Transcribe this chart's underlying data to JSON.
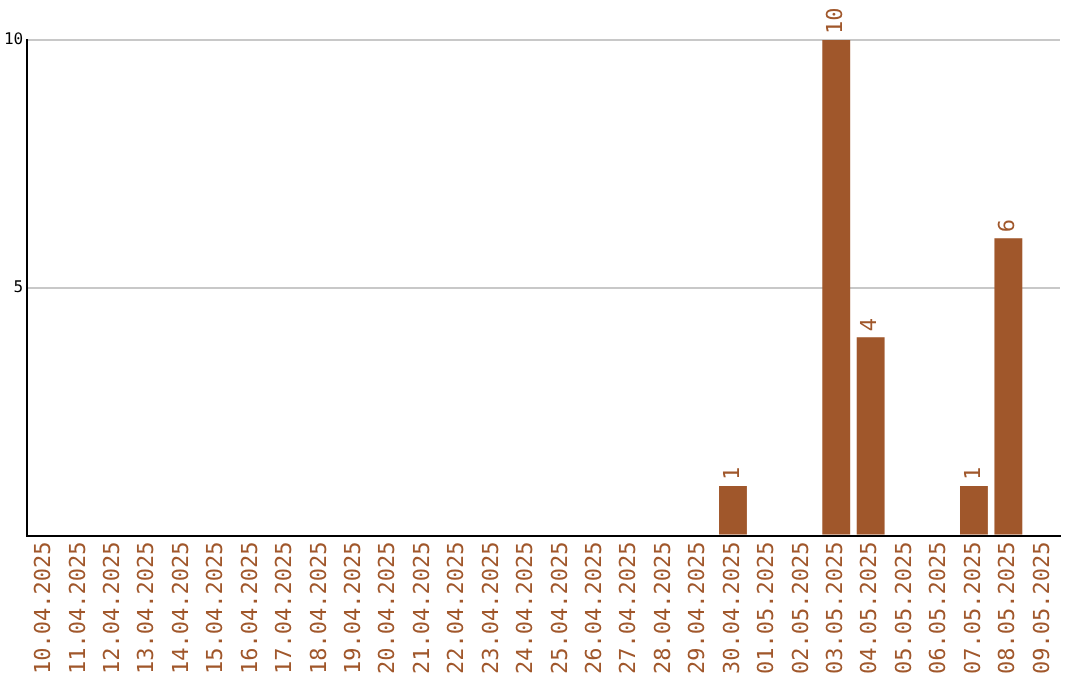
{
  "chart_data": {
    "type": "bar",
    "categories": [
      "10.04.2025",
      "11.04.2025",
      "12.04.2025",
      "13.04.2025",
      "14.04.2025",
      "15.04.2025",
      "16.04.2025",
      "17.04.2025",
      "18.04.2025",
      "19.04.2025",
      "20.04.2025",
      "21.04.2025",
      "22.04.2025",
      "23.04.2025",
      "24.04.2025",
      "25.04.2025",
      "26.04.2025",
      "27.04.2025",
      "28.04.2025",
      "29.04.2025",
      "30.04.2025",
      "01.05.2025",
      "02.05.2025",
      "03.05.2025",
      "04.05.2025",
      "05.05.2025",
      "06.05.2025",
      "07.05.2025",
      "08.05.2025",
      "09.05.2025"
    ],
    "values": [
      0,
      0,
      0,
      0,
      0,
      0,
      0,
      0,
      0,
      0,
      0,
      0,
      0,
      0,
      0,
      0,
      0,
      0,
      0,
      0,
      1,
      0,
      0,
      10,
      4,
      0,
      0,
      1,
      6,
      0
    ],
    "value_labels": [
      null,
      null,
      null,
      null,
      null,
      null,
      null,
      null,
      null,
      null,
      null,
      null,
      null,
      null,
      null,
      null,
      null,
      null,
      null,
      null,
      "1",
      null,
      null,
      "10",
      "4",
      null,
      null,
      "1",
      "6",
      null
    ],
    "color": "#a0572b",
    "ylim": [
      0,
      10
    ],
    "yticks": [
      {
        "value": 0,
        "label": null
      },
      5,
      10
    ],
    "grid": "y",
    "legend": false
  }
}
